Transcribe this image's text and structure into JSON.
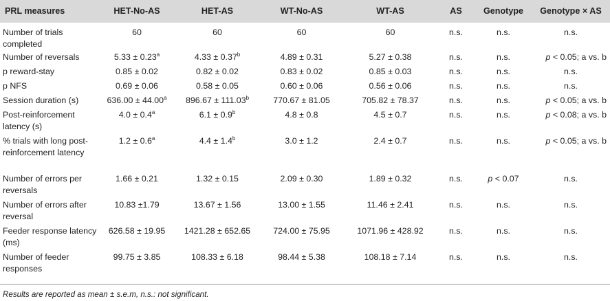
{
  "table": {
    "headers": [
      "PRL measures",
      "HET-No-AS",
      "HET-AS",
      "WT-No-AS",
      "WT-AS",
      "AS",
      "Genotype",
      "Genotype × AS"
    ],
    "rows": [
      {
        "measure": "Number of trials completed",
        "het_no_as": "60",
        "het_as": "60",
        "wt_no_as": "60",
        "wt_as": "60",
        "as": "n.s.",
        "genotype": "n.s.",
        "interaction": "n.s."
      },
      {
        "measure": "Number of reversals",
        "het_no_as": "5.33 ± 0.23",
        "het_no_as_sup": "a",
        "het_as": "4.33 ± 0.37",
        "het_as_sup": "b",
        "wt_no_as": "4.89 ± 0.31",
        "wt_as": "5.27 ± 0.38",
        "as": "n.s.",
        "genotype": "n.s.",
        "interaction_p": "p",
        "interaction": "< 0.05; a vs. b"
      },
      {
        "measure": "p reward-stay",
        "het_no_as": "0.85 ± 0.02",
        "het_as": "0.82 ± 0.02",
        "wt_no_as": "0.83 ± 0.02",
        "wt_as": "0.85 ± 0.03",
        "as": "n.s.",
        "genotype": "n.s.",
        "interaction": "n.s."
      },
      {
        "measure": "p NFS",
        "het_no_as": "0.69 ± 0.06",
        "het_as": "0.58 ± 0.05",
        "wt_no_as": "0.60 ± 0.06",
        "wt_as": "0.56 ± 0.06",
        "as": "n.s.",
        "genotype": "n.s.",
        "interaction": "n.s."
      },
      {
        "measure": "Session duration (s)",
        "het_no_as": "636.00 ± 44.00",
        "het_no_as_sup": "a",
        "het_as": "896.67 ± 111.03",
        "het_as_sup": "b",
        "wt_no_as": "770.67 ± 81.05",
        "wt_as": "705.82 ± 78.37",
        "as": "n.s.",
        "genotype": "n.s.",
        "interaction_p": "p",
        "interaction": "< 0.05; a vs. b"
      },
      {
        "measure": "Post-reinforcement latency (s)",
        "het_no_as": "4.0 ± 0.4",
        "het_no_as_sup": "a",
        "het_as": "6.1 ± 0.9",
        "het_as_sup": "b",
        "wt_no_as": "4.8 ± 0.8",
        "wt_as": "4.5 ± 0.7",
        "as": "n.s.",
        "genotype": "n.s.",
        "interaction_p": "p",
        "interaction": "< 0.08; a vs. b"
      },
      {
        "measure": "% trials with long post-reinforcement latency",
        "het_no_as": "1.2 ± 0.6",
        "het_no_as_sup": "a",
        "het_as": "4.4 ± 1.4",
        "het_as_sup": "b",
        "wt_no_as": "3.0 ± 1.2",
        "wt_as": "2.4 ± 0.7",
        "as": "n.s.",
        "genotype": "n.s.",
        "interaction_p": "p",
        "interaction": "< 0.05; a vs. b"
      },
      {
        "measure": "Number of errors per reversals",
        "het_no_as": "1.66 ± 0.21",
        "het_as": "1.32 ± 0.15",
        "wt_no_as": "2.09 ± 0.30",
        "wt_as": "1.89 ± 0.32",
        "as": "n.s.",
        "genotype_p": "p",
        "genotype": "< 0.07",
        "interaction": "n.s."
      },
      {
        "measure": "Number of errors after reversal",
        "het_no_as": "10.83 ±1.79",
        "het_as": "13.67 ± 1.56",
        "wt_no_as": "13.00 ± 1.55",
        "wt_as": "11.46 ± 2.41",
        "as": "n.s.",
        "genotype": "n.s.",
        "interaction": "n.s."
      },
      {
        "measure": "Feeder response latency (ms)",
        "het_no_as": "626.58 ± 19.95",
        "het_as": "1421.28 ± 652.65",
        "wt_no_as": "724.00 ± 75.95",
        "wt_as": "1071.96 ± 428.92",
        "as": "n.s.",
        "genotype": "n.s.",
        "interaction": "n.s."
      },
      {
        "measure": "Number of feeder responses",
        "het_no_as": "99.75 ± 3.85",
        "het_as": "108.33 ± 6.18",
        "wt_no_as": "98.44 ± 5.38",
        "wt_as": "108.18 ± 7.14",
        "as": "n.s.",
        "genotype": "n.s.",
        "interaction": "n.s."
      }
    ]
  },
  "footnote": "Results are reported as mean ± s.e.m, n.s.: not significant."
}
